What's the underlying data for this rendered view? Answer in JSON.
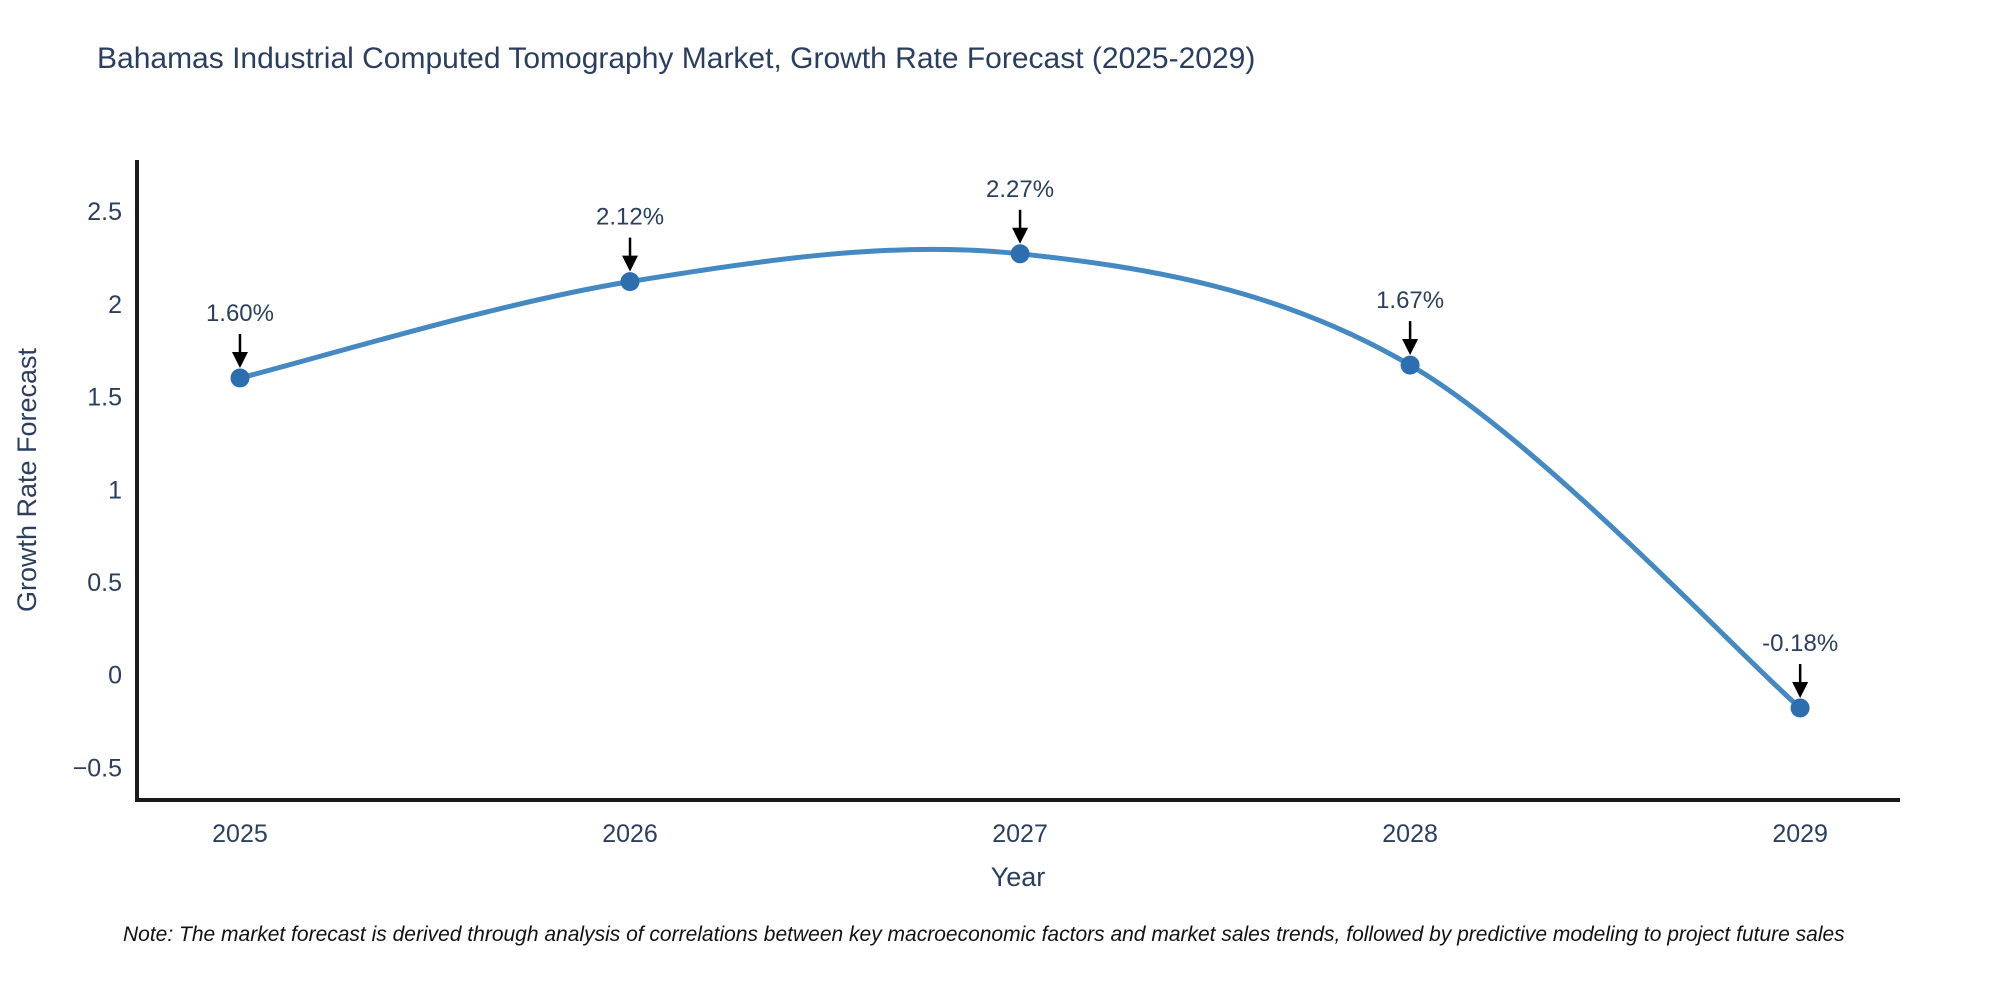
{
  "note": "Note: The market forecast is derived through analysis of correlations between key macroeconomic factors and market sales trends, followed by predictive modeling to project future sales",
  "chart_data": {
    "type": "line",
    "title": "Bahamas Industrial Computed Tomography Market, Growth Rate Forecast (2025-2029)",
    "xlabel": "Year",
    "ylabel": "Growth Rate Forecast",
    "x": [
      2025,
      2026,
      2027,
      2028,
      2029
    ],
    "values": [
      1.6,
      2.12,
      2.27,
      1.67,
      -0.18
    ],
    "point_labels": [
      "1.60%",
      "2.12%",
      "2.27%",
      "1.67%",
      "-0.18%"
    ],
    "xticks": [
      2025,
      2026,
      2027,
      2028,
      2029
    ],
    "xtick_labels": [
      "2025",
      "2026",
      "2027",
      "2028",
      "2029"
    ],
    "yticks": [
      2.5,
      2,
      1.5,
      1,
      0.5,
      0,
      -0.5
    ],
    "ytick_labels": [
      "2.5",
      "2",
      "1.5",
      "1",
      "0.5",
      "0",
      "−0.5"
    ],
    "xlim": [
      2024.736,
      2029.256
    ],
    "ylim": [
      -0.676,
      2.776
    ],
    "grid": false,
    "legend": "none",
    "line_shape": "spline",
    "colors": {
      "line": "#4489c2",
      "marker": "#2d6fae",
      "title": "#2a3f5f",
      "tick": "#2a3f5f",
      "annotation_text": "#2a3f5f",
      "annotation_arrow": "#000000",
      "axis_line": "#1a1a1a",
      "note": "#111111"
    }
  }
}
